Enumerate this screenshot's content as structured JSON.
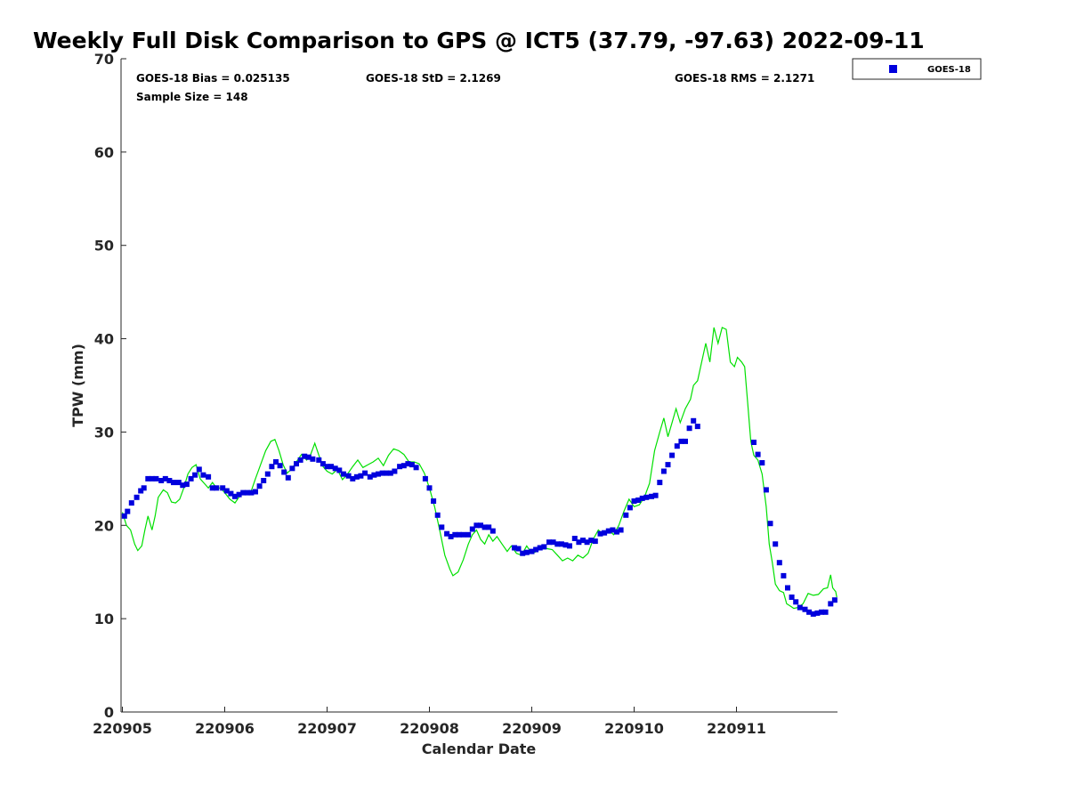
{
  "chart_data": {
    "type": "scatter",
    "title": "Weekly Full Disk Comparison to GPS @ ICT5 (37.79, -97.63) 2022-09-11",
    "xlabel": "Calendar Date",
    "ylabel": "TPW (mm)",
    "xlim": [
      0,
      7
    ],
    "ylim": [
      0,
      70
    ],
    "yticks": [
      0,
      10,
      20,
      30,
      40,
      50,
      60,
      70
    ],
    "xtick_labels": [
      "220905",
      "220906",
      "220907",
      "220908",
      "220909",
      "220910",
      "220911"
    ],
    "stats": {
      "bias": "GOES-18 Bias = 0.025135",
      "std": "GOES-18 StD = 2.1269",
      "rms": "GOES-18 RMS = 2.1271",
      "sample": "Sample Size = 148"
    },
    "legend": {
      "position": "top-right",
      "entries": [
        "GOES-18"
      ]
    },
    "colors": {
      "goes": "#0000dd",
      "gps": "#00e000"
    },
    "series": [
      {
        "name": "GOES-18",
        "kind": "markers",
        "points": [
          [
            0.02,
            21.0
          ],
          [
            0.05,
            21.5
          ],
          [
            0.09,
            22.4
          ],
          [
            0.14,
            23.0
          ],
          [
            0.18,
            23.7
          ],
          [
            0.21,
            24.0
          ],
          [
            0.25,
            25.0
          ],
          [
            0.29,
            25.0
          ],
          [
            0.33,
            25.0
          ],
          [
            0.38,
            24.8
          ],
          [
            0.42,
            25.0
          ],
          [
            0.46,
            24.8
          ],
          [
            0.5,
            24.6
          ],
          [
            0.55,
            24.6
          ],
          [
            0.59,
            24.3
          ],
          [
            0.63,
            24.4
          ],
          [
            0.67,
            25.0
          ],
          [
            0.71,
            25.4
          ],
          [
            0.75,
            26.0
          ],
          [
            0.79,
            25.4
          ],
          [
            0.84,
            25.2
          ],
          [
            0.88,
            24.0
          ],
          [
            0.92,
            24.0
          ],
          [
            0.98,
            24.0
          ],
          [
            1.02,
            23.7
          ],
          [
            1.06,
            23.4
          ],
          [
            1.1,
            23.1
          ],
          [
            1.14,
            23.3
          ],
          [
            1.18,
            23.5
          ],
          [
            1.22,
            23.5
          ],
          [
            1.26,
            23.5
          ],
          [
            1.3,
            23.6
          ],
          [
            1.34,
            24.2
          ],
          [
            1.38,
            24.8
          ],
          [
            1.42,
            25.5
          ],
          [
            1.46,
            26.3
          ],
          [
            1.5,
            26.8
          ],
          [
            1.54,
            26.4
          ],
          [
            1.58,
            25.7
          ],
          [
            1.62,
            25.1
          ],
          [
            1.66,
            26.1
          ],
          [
            1.7,
            26.6
          ],
          [
            1.74,
            27.0
          ],
          [
            1.78,
            27.4
          ],
          [
            1.82,
            27.3
          ],
          [
            1.86,
            27.1
          ],
          [
            1.92,
            27.0
          ],
          [
            1.96,
            26.6
          ],
          [
            2.0,
            26.3
          ],
          [
            2.04,
            26.3
          ],
          [
            2.08,
            26.1
          ],
          [
            2.12,
            25.9
          ],
          [
            2.16,
            25.5
          ],
          [
            2.21,
            25.3
          ],
          [
            2.25,
            25.0
          ],
          [
            2.29,
            25.2
          ],
          [
            2.33,
            25.3
          ],
          [
            2.37,
            25.6
          ],
          [
            2.42,
            25.2
          ],
          [
            2.46,
            25.4
          ],
          [
            2.5,
            25.5
          ],
          [
            2.54,
            25.6
          ],
          [
            2.58,
            25.6
          ],
          [
            2.62,
            25.6
          ],
          [
            2.66,
            25.8
          ],
          [
            2.71,
            26.3
          ],
          [
            2.75,
            26.4
          ],
          [
            2.79,
            26.6
          ],
          [
            2.83,
            26.5
          ],
          [
            2.87,
            26.2
          ],
          [
            2.96,
            25.0
          ],
          [
            3.0,
            24.0
          ],
          [
            3.04,
            22.6
          ],
          [
            3.08,
            21.1
          ],
          [
            3.12,
            19.8
          ],
          [
            3.17,
            19.1
          ],
          [
            3.21,
            18.8
          ],
          [
            3.25,
            19.0
          ],
          [
            3.29,
            19.0
          ],
          [
            3.33,
            19.0
          ],
          [
            3.38,
            19.0
          ],
          [
            3.42,
            19.6
          ],
          [
            3.46,
            20.0
          ],
          [
            3.5,
            20.0
          ],
          [
            3.54,
            19.8
          ],
          [
            3.58,
            19.8
          ],
          [
            3.62,
            19.4
          ],
          [
            3.83,
            17.6
          ],
          [
            3.87,
            17.5
          ],
          [
            3.91,
            17.0
          ],
          [
            3.95,
            17.1
          ],
          [
            4.0,
            17.2
          ],
          [
            4.04,
            17.4
          ],
          [
            4.08,
            17.6
          ],
          [
            4.12,
            17.7
          ],
          [
            4.17,
            18.2
          ],
          [
            4.21,
            18.2
          ],
          [
            4.25,
            18.0
          ],
          [
            4.29,
            18.0
          ],
          [
            4.33,
            17.9
          ],
          [
            4.37,
            17.8
          ],
          [
            4.42,
            18.6
          ],
          [
            4.46,
            18.2
          ],
          [
            4.5,
            18.4
          ],
          [
            4.54,
            18.2
          ],
          [
            4.58,
            18.4
          ],
          [
            4.62,
            18.3
          ],
          [
            4.67,
            19.1
          ],
          [
            4.71,
            19.2
          ],
          [
            4.75,
            19.4
          ],
          [
            4.79,
            19.5
          ],
          [
            4.83,
            19.3
          ],
          [
            4.87,
            19.5
          ],
          [
            4.92,
            21.1
          ],
          [
            4.96,
            21.9
          ],
          [
            5.0,
            22.6
          ],
          [
            5.04,
            22.7
          ],
          [
            5.08,
            22.9
          ],
          [
            5.12,
            23.0
          ],
          [
            5.17,
            23.1
          ],
          [
            5.21,
            23.2
          ],
          [
            5.25,
            24.6
          ],
          [
            5.29,
            25.8
          ],
          [
            5.33,
            26.5
          ],
          [
            5.37,
            27.5
          ],
          [
            5.42,
            28.5
          ],
          [
            5.46,
            29.0
          ],
          [
            5.5,
            29.0
          ],
          [
            5.54,
            30.4
          ],
          [
            5.58,
            31.2
          ],
          [
            5.62,
            30.6
          ],
          [
            6.17,
            28.9
          ],
          [
            6.21,
            27.6
          ],
          [
            6.25,
            26.7
          ],
          [
            6.29,
            23.8
          ],
          [
            6.33,
            20.2
          ],
          [
            6.38,
            18.0
          ],
          [
            6.42,
            16.0
          ],
          [
            6.46,
            14.6
          ],
          [
            6.5,
            13.3
          ],
          [
            6.54,
            12.3
          ],
          [
            6.58,
            11.8
          ],
          [
            6.62,
            11.2
          ],
          [
            6.67,
            11.0
          ],
          [
            6.71,
            10.7
          ],
          [
            6.75,
            10.5
          ],
          [
            6.79,
            10.6
          ],
          [
            6.83,
            10.7
          ],
          [
            6.87,
            10.7
          ],
          [
            6.92,
            11.6
          ],
          [
            6.96,
            12.0
          ]
        ]
      },
      {
        "name": "GPS",
        "kind": "line",
        "points": [
          [
            0.0,
            21.4
          ],
          [
            0.04,
            20.0
          ],
          [
            0.08,
            19.5
          ],
          [
            0.12,
            18.0
          ],
          [
            0.15,
            17.3
          ],
          [
            0.19,
            17.8
          ],
          [
            0.22,
            19.5
          ],
          [
            0.25,
            21.0
          ],
          [
            0.29,
            19.5
          ],
          [
            0.32,
            21.0
          ],
          [
            0.35,
            23.0
          ],
          [
            0.4,
            23.8
          ],
          [
            0.44,
            23.5
          ],
          [
            0.48,
            22.5
          ],
          [
            0.52,
            22.4
          ],
          [
            0.56,
            22.8
          ],
          [
            0.6,
            24.0
          ],
          [
            0.64,
            25.5
          ],
          [
            0.68,
            26.2
          ],
          [
            0.72,
            26.5
          ],
          [
            0.76,
            25.0
          ],
          [
            0.8,
            24.5
          ],
          [
            0.84,
            24.0
          ],
          [
            0.88,
            24.6
          ],
          [
            0.92,
            24.0
          ],
          [
            0.96,
            24.0
          ],
          [
            1.0,
            23.5
          ],
          [
            1.05,
            22.8
          ],
          [
            1.1,
            22.4
          ],
          [
            1.15,
            23.2
          ],
          [
            1.2,
            23.7
          ],
          [
            1.25,
            23.4
          ],
          [
            1.3,
            25.0
          ],
          [
            1.35,
            26.5
          ],
          [
            1.4,
            28.0
          ],
          [
            1.45,
            29.0
          ],
          [
            1.49,
            29.2
          ],
          [
            1.53,
            28.0
          ],
          [
            1.57,
            26.5
          ],
          [
            1.61,
            25.6
          ],
          [
            1.65,
            26.0
          ],
          [
            1.7,
            26.8
          ],
          [
            1.75,
            27.6
          ],
          [
            1.8,
            27.0
          ],
          [
            1.84,
            27.6
          ],
          [
            1.88,
            28.8
          ],
          [
            1.92,
            27.5
          ],
          [
            1.96,
            26.3
          ],
          [
            2.0,
            25.8
          ],
          [
            2.05,
            25.5
          ],
          [
            2.1,
            26.0
          ],
          [
            2.15,
            24.9
          ],
          [
            2.2,
            25.5
          ],
          [
            2.25,
            26.3
          ],
          [
            2.3,
            27.0
          ],
          [
            2.35,
            26.2
          ],
          [
            2.4,
            26.5
          ],
          [
            2.45,
            26.8
          ],
          [
            2.5,
            27.2
          ],
          [
            2.55,
            26.4
          ],
          [
            2.6,
            27.5
          ],
          [
            2.65,
            28.2
          ],
          [
            2.7,
            28.0
          ],
          [
            2.75,
            27.6
          ],
          [
            2.8,
            26.8
          ],
          [
            2.85,
            26.8
          ],
          [
            2.9,
            26.6
          ],
          [
            2.95,
            25.6
          ],
          [
            3.0,
            24.0
          ],
          [
            3.05,
            22.0
          ],
          [
            3.1,
            19.5
          ],
          [
            3.15,
            16.8
          ],
          [
            3.2,
            15.3
          ],
          [
            3.23,
            14.6
          ],
          [
            3.28,
            15.0
          ],
          [
            3.33,
            16.3
          ],
          [
            3.38,
            18.0
          ],
          [
            3.42,
            19.0
          ],
          [
            3.46,
            19.5
          ],
          [
            3.5,
            18.5
          ],
          [
            3.54,
            18.0
          ],
          [
            3.58,
            19.0
          ],
          [
            3.62,
            18.3
          ],
          [
            3.66,
            18.8
          ],
          [
            3.71,
            18.0
          ],
          [
            3.76,
            17.2
          ],
          [
            3.8,
            17.8
          ],
          [
            3.85,
            17.0
          ],
          [
            3.9,
            16.8
          ],
          [
            3.95,
            17.8
          ],
          [
            4.0,
            17.0
          ],
          [
            4.05,
            17.2
          ],
          [
            4.1,
            17.8
          ],
          [
            4.15,
            17.5
          ],
          [
            4.2,
            17.4
          ],
          [
            4.25,
            16.8
          ],
          [
            4.3,
            16.2
          ],
          [
            4.35,
            16.5
          ],
          [
            4.4,
            16.2
          ],
          [
            4.45,
            16.8
          ],
          [
            4.5,
            16.5
          ],
          [
            4.55,
            17.0
          ],
          [
            4.6,
            18.5
          ],
          [
            4.65,
            19.5
          ],
          [
            4.7,
            19.0
          ],
          [
            4.75,
            19.5
          ],
          [
            4.8,
            19.0
          ],
          [
            4.85,
            20.0
          ],
          [
            4.9,
            21.5
          ],
          [
            4.95,
            22.8
          ],
          [
            5.0,
            22.0
          ],
          [
            5.05,
            22.2
          ],
          [
            5.1,
            23.0
          ],
          [
            5.15,
            24.5
          ],
          [
            5.2,
            28.0
          ],
          [
            5.25,
            30.0
          ],
          [
            5.29,
            31.5
          ],
          [
            5.33,
            29.5
          ],
          [
            5.37,
            31.0
          ],
          [
            5.41,
            32.5
          ],
          [
            5.45,
            31.0
          ],
          [
            5.5,
            32.5
          ],
          [
            5.55,
            33.5
          ],
          [
            5.58,
            35.0
          ],
          [
            5.62,
            35.5
          ],
          [
            5.66,
            37.5
          ],
          [
            5.7,
            39.5
          ],
          [
            5.74,
            37.5
          ],
          [
            5.78,
            41.2
          ],
          [
            5.82,
            39.5
          ],
          [
            5.86,
            41.2
          ],
          [
            5.9,
            41.0
          ],
          [
            5.94,
            37.5
          ],
          [
            5.98,
            37.0
          ],
          [
            6.01,
            38.0
          ],
          [
            6.05,
            37.5
          ],
          [
            6.08,
            37.0
          ],
          [
            6.11,
            33.0
          ],
          [
            6.14,
            29.0
          ],
          [
            6.17,
            27.5
          ],
          [
            6.21,
            27.0
          ],
          [
            6.25,
            25.5
          ],
          [
            6.29,
            22.0
          ],
          [
            6.32,
            18.0
          ],
          [
            6.35,
            16.0
          ],
          [
            6.38,
            13.7
          ],
          [
            6.42,
            13.0
          ],
          [
            6.46,
            12.8
          ],
          [
            6.49,
            11.6
          ],
          [
            6.52,
            11.4
          ],
          [
            6.56,
            11.1
          ],
          [
            6.6,
            11.2
          ],
          [
            6.65,
            11.6
          ],
          [
            6.7,
            12.7
          ],
          [
            6.75,
            12.5
          ],
          [
            6.8,
            12.6
          ],
          [
            6.85,
            13.2
          ],
          [
            6.89,
            13.3
          ],
          [
            6.92,
            14.7
          ],
          [
            6.94,
            13.3
          ],
          [
            6.97,
            12.9
          ],
          [
            6.98,
            12.3
          ]
        ]
      }
    ]
  }
}
